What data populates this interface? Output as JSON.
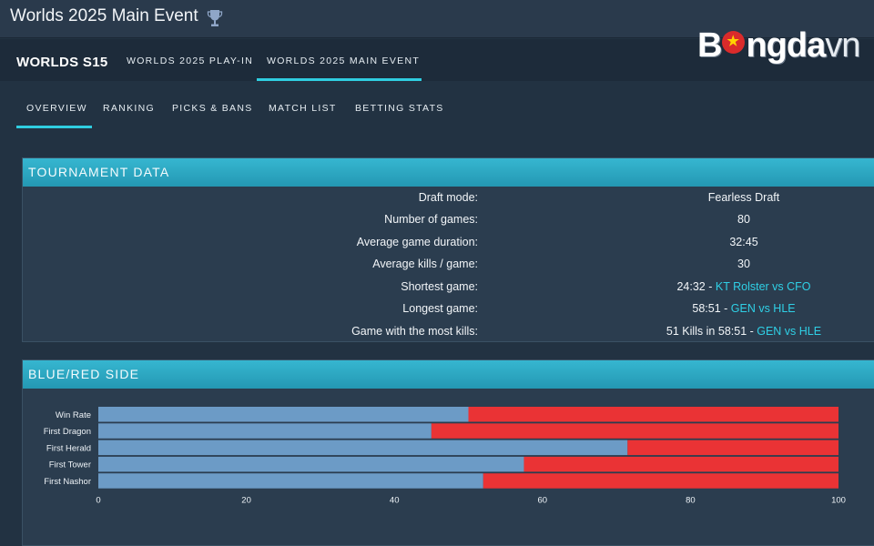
{
  "window": {
    "title": "Worlds 2025 Main Event",
    "title_icon": "trophy-icon"
  },
  "topnav": {
    "brand": "WORLDS S15",
    "tabs": [
      {
        "label": "WORLDS 2025 PLAY-IN",
        "active": false
      },
      {
        "label": "WORLDS 2025 MAIN EVENT",
        "active": true
      }
    ],
    "logo": {
      "part1": "B",
      "part2": "ngda",
      "part3": "vn"
    }
  },
  "subnav": {
    "tabs": [
      {
        "label": "OVERVIEW",
        "active": true
      },
      {
        "label": "RANKING",
        "active": false
      },
      {
        "label": "PICKS & BANS",
        "active": false
      },
      {
        "label": "MATCH LIST",
        "active": false
      },
      {
        "label": "BETTING STATS",
        "active": false
      }
    ]
  },
  "tournament": {
    "header": "TOURNAMENT DATA",
    "rows": [
      {
        "label": "Draft mode:",
        "value": "Fearless Draft"
      },
      {
        "label": "Number of games:",
        "value": "80"
      },
      {
        "label": "Average game duration:",
        "value": "32:45"
      },
      {
        "label": "Average kills / game:",
        "value": "30"
      },
      {
        "label": "Shortest game:",
        "value": "24:32 - ",
        "link": "KT Rolster vs CFO"
      },
      {
        "label": "Longest game:",
        "value": "58:51 - ",
        "link": "GEN vs HLE"
      },
      {
        "label": "Game with the most kills:",
        "value": "51 Kills in 58:51 - ",
        "link": "GEN vs HLE"
      }
    ]
  },
  "side": {
    "header": "BLUE/RED SIDE"
  },
  "chart_data": {
    "type": "bar",
    "orientation": "horizontal",
    "stacked": true,
    "categories": [
      "Win Rate",
      "First Dragon",
      "First Herald",
      "First Tower",
      "First Nashor"
    ],
    "series": [
      {
        "color": "#6c9bc6",
        "values": [
          50,
          45,
          71.5,
          57.5,
          52
        ]
      },
      {
        "color": "#ea3335",
        "values": [
          50,
          55,
          28.5,
          42.5,
          48
        ]
      }
    ],
    "xlim": [
      0,
      100
    ],
    "xticks": [
      0,
      20,
      40,
      60,
      80,
      100
    ],
    "grid": false
  },
  "colors": {
    "accent": "#2fcde0",
    "blue": "#6c9bc6",
    "red": "#ea3335",
    "panel_header": "#2aa6c2"
  }
}
